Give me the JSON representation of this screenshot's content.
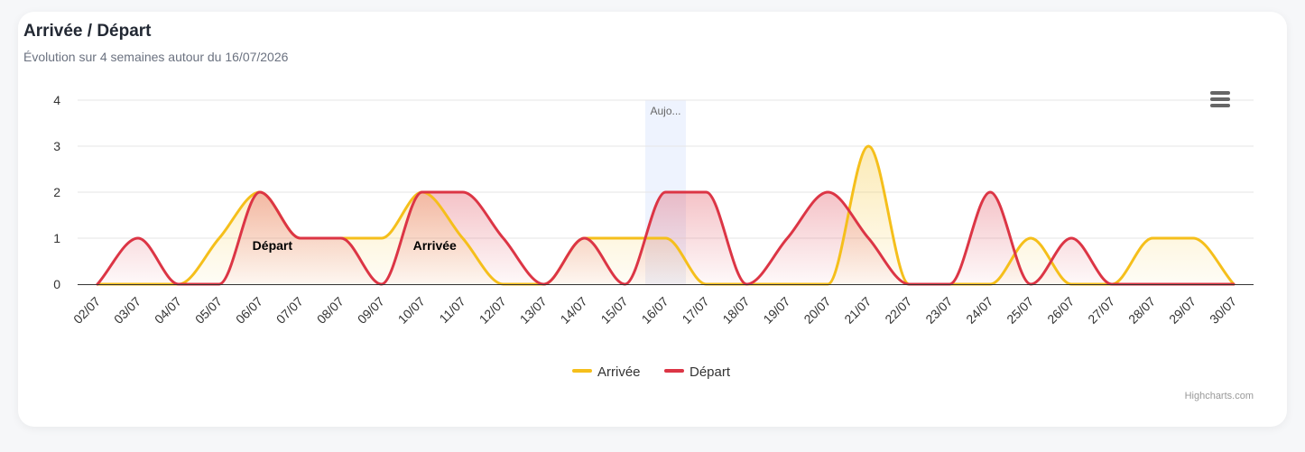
{
  "chart_data": {
    "type": "area",
    "title": "Arrivée / Départ",
    "subtitle": "Évolution sur 4 semaines autour du 16/07/2026",
    "categories": [
      "02/07",
      "03/07",
      "04/07",
      "05/07",
      "06/07",
      "07/07",
      "08/07",
      "09/07",
      "10/07",
      "11/07",
      "12/07",
      "13/07",
      "14/07",
      "15/07",
      "16/07",
      "17/07",
      "18/07",
      "19/07",
      "20/07",
      "21/07",
      "22/07",
      "23/07",
      "24/07",
      "25/07",
      "26/07",
      "27/07",
      "28/07",
      "29/07",
      "30/07"
    ],
    "ylim": [
      0,
      4
    ],
    "yticks": [
      0,
      1,
      2,
      3,
      4
    ],
    "grid": true,
    "legend": "bottom-center",
    "series": [
      {
        "name": "Arrivée",
        "color": "#f5bf1b",
        "values": [
          0,
          0,
          0,
          1,
          2,
          1,
          1,
          1,
          2,
          1,
          0,
          0,
          1,
          1,
          1,
          0,
          0,
          0,
          0,
          3,
          0,
          0,
          0,
          1,
          0,
          0,
          1,
          1,
          0
        ]
      },
      {
        "name": "Départ",
        "color": "#dc3545",
        "values": [
          0,
          1,
          0,
          0,
          2,
          1,
          1,
          0,
          2,
          2,
          1,
          0,
          1,
          0,
          2,
          2,
          0,
          1,
          2,
          1,
          0,
          0,
          2,
          0,
          1,
          0,
          0,
          0,
          0
        ]
      }
    ],
    "plotband": {
      "from_index": 14,
      "label": "Aujo..."
    },
    "annotations": [
      {
        "text": "Départ",
        "x_index": 4,
        "y": 1
      },
      {
        "text": "Arrivée",
        "x_index": 8,
        "y": 1
      }
    ],
    "credits": "Highcharts.com"
  },
  "menu": {
    "icon": "hamburger-menu-icon"
  }
}
